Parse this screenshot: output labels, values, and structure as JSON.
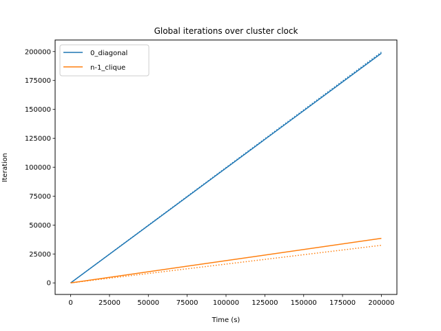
{
  "chart_data": {
    "type": "line",
    "title": "Global iterations over cluster clock",
    "xlabel": "Time (s)",
    "ylabel": "Iteration",
    "xlim": [
      -10000,
      210000
    ],
    "ylim": [
      -10000,
      210000
    ],
    "xticks": [
      0,
      25000,
      50000,
      75000,
      100000,
      125000,
      150000,
      175000,
      200000
    ],
    "yticks": [
      0,
      25000,
      50000,
      75000,
      100000,
      125000,
      150000,
      175000,
      200000
    ],
    "xtick_labels": [
      "0",
      "25000",
      "50000",
      "75000",
      "100000",
      "125000",
      "150000",
      "175000",
      "200000"
    ],
    "ytick_labels": [
      "0",
      "25000",
      "50000",
      "75000",
      "100000",
      "125000",
      "150000",
      "175000",
      "200000"
    ],
    "grid": false,
    "legend_position": "top-left",
    "series": [
      {
        "name": "0_diagonal",
        "color": "#1f77b4",
        "style": "solid",
        "x": [
          0,
          200000
        ],
        "y": [
          0,
          198500
        ]
      },
      {
        "name": "n-1_clique",
        "color": "#ff7f0e",
        "style": "solid",
        "x": [
          0,
          200000
        ],
        "y": [
          0,
          38500
        ]
      },
      {
        "color": "#1f77b4",
        "style": "dotted",
        "x": [
          0,
          200000
        ],
        "y": [
          0,
          199500
        ]
      },
      {
        "color": "#ff7f0e",
        "style": "dotted",
        "x": [
          0,
          200000
        ],
        "y": [
          0,
          32500
        ]
      }
    ]
  }
}
